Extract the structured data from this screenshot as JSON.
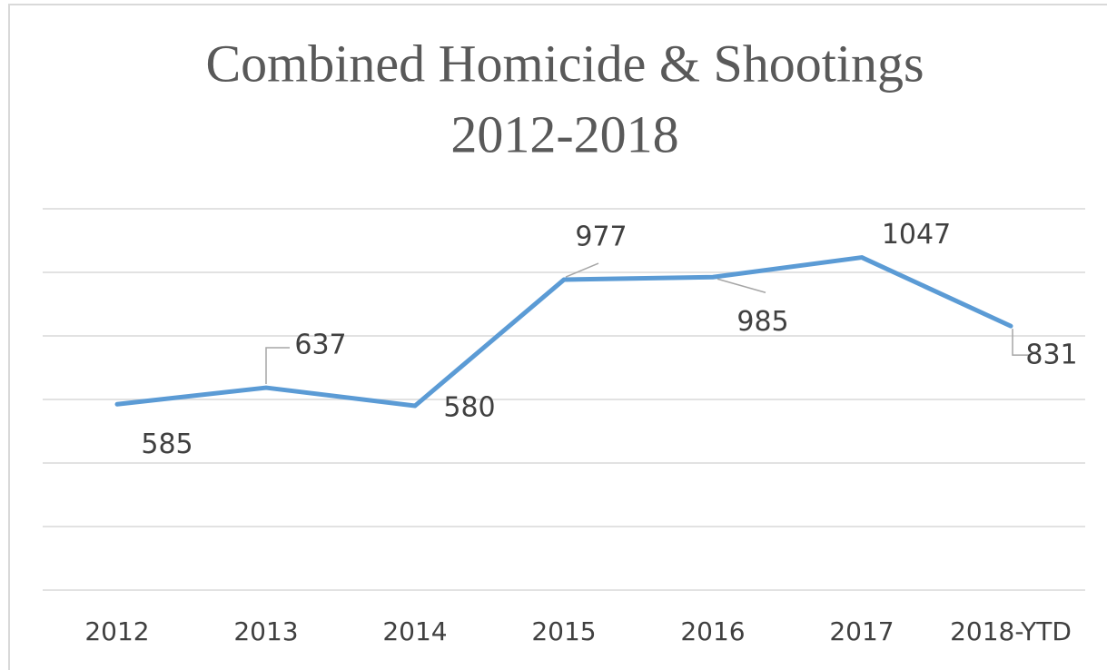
{
  "chart_data": {
    "type": "line",
    "title": "Combined Homicide & Shootings",
    "subtitle": "2012-2018",
    "categories": [
      "2012",
      "2013",
      "2014",
      "2015",
      "2016",
      "2017",
      "2018-YTD"
    ],
    "series": [
      {
        "name": "Combined Homicide & Shootings",
        "color": "#5b9bd5",
        "values": [
          585,
          637,
          580,
          977,
          985,
          1047,
          831
        ]
      }
    ],
    "ylim": [
      0,
      1200
    ],
    "yticks": [
      0,
      200,
      400,
      600,
      800,
      1000,
      1200
    ],
    "grid": true
  }
}
